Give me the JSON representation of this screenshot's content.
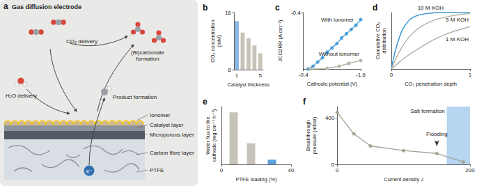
{
  "diagram": {
    "panel": "a",
    "title": "Gas diffusion electrode",
    "processes": {
      "co2_delivery": "CO₂ delivery",
      "carbonate": "(Bi)carbonate\nformation",
      "h2o_delivery": "H₂O delivery",
      "product": "Product formation"
    },
    "layers": {
      "ionomer": "Ionomer",
      "catalyst": "Catalyst layer",
      "microporous": "Microporous layer",
      "carbon_fibre": "Carbon fibre layer",
      "ptfe": "PTFE"
    },
    "electron": "e⁻"
  },
  "chart_data": [
    {
      "title": "b",
      "type": "bar",
      "categories": [
        "1",
        null,
        null,
        null,
        "5"
      ],
      "values": [
        14.8,
        13.2,
        12.4,
        11.4,
        10.3
      ],
      "colors": [
        "#8cb8e2",
        "#c8c3b8",
        "#c8c3b8",
        "#c8c3b8",
        "#c8c3b8"
      ],
      "ylim": [
        8,
        16
      ],
      "yticks": [
        8,
        16
      ],
      "xlabel": "Catalyst thickness",
      "ylabel": "CO₂ concentration\n(mM)"
    },
    {
      "title": "c",
      "type": "line",
      "series": [
        {
          "name": "With ionomer",
          "color": "#4a9fd8",
          "marker": "circle",
          "x": [
            -0.5,
            -0.6,
            -0.7,
            -0.8,
            -0.9,
            -1.0,
            -1.1,
            -1.2,
            -1.3,
            -1.4,
            -1.5,
            -1.6
          ],
          "values": [
            0,
            -0.02,
            -0.05,
            -0.08,
            -0.12,
            -0.15,
            -0.18,
            -0.22,
            -0.25,
            -0.28,
            -0.31,
            -0.35
          ]
        },
        {
          "name": "Without ionomer",
          "color": "#b9b4a8",
          "marker": "circle",
          "x": [
            -0.55,
            -0.9,
            -1.15,
            -1.35,
            -1.6
          ],
          "values": [
            0,
            -0.005,
            -0.02,
            -0.04,
            -0.06
          ]
        }
      ],
      "xlim": [
        -0.4,
        -1.6
      ],
      "xticks": [
        -0.4,
        -1.6
      ],
      "ylim": [
        0,
        -0.4
      ],
      "yticks": [
        -0.4
      ],
      "xlabel": "Cathodic potential (V)",
      "ylabel": "JCO2RR (A cm⁻²)"
    },
    {
      "title": "d",
      "type": "line",
      "x": [
        0,
        0.1,
        0.2,
        0.3,
        0.4,
        0.5,
        0.6,
        0.7,
        0.8,
        0.9,
        1
      ],
      "series": [
        {
          "name": "10 M KOH",
          "color": "#2a8fd6",
          "values": [
            0,
            0.55,
            0.82,
            0.93,
            0.97,
            0.99,
            1,
            1,
            1,
            1,
            1
          ]
        },
        {
          "name": "5 M KOH",
          "color": "#b5b0a5",
          "values": [
            0,
            0.3,
            0.52,
            0.67,
            0.77,
            0.84,
            0.89,
            0.92,
            0.95,
            0.97,
            0.98
          ]
        },
        {
          "name": "1 M KOH",
          "color": "#b5b0a5",
          "values": [
            0,
            0.12,
            0.23,
            0.32,
            0.41,
            0.49,
            0.56,
            0.62,
            0.67,
            0.71,
            0.75
          ]
        }
      ],
      "xlim": [
        0,
        1
      ],
      "xticks": [
        0,
        1
      ],
      "ylim": [
        0,
        1
      ],
      "tick_labels": "x",
      "xlabel": "CO₂ penetration depth",
      "ylabel": "Cumulative CO₂\ndistribution"
    },
    {
      "title": "e",
      "type": "bar",
      "x": [
        7,
        17,
        29
      ],
      "values": [
        27,
        11,
        2.5
      ],
      "colors": [
        "#c8c3b8",
        "#c8c3b8",
        "#5d9fdc"
      ],
      "xlim": [
        0,
        40
      ],
      "xticks": [
        0,
        40
      ],
      "ylim": [
        0,
        30
      ],
      "tick_labels": "x",
      "xlabel": "PTFE loading (%)",
      "ylabel": "Water flux to the\ncathode (mg cm⁻² h⁻¹)"
    },
    {
      "title": "f",
      "type": "line",
      "x": [
        0,
        25,
        50,
        100,
        150,
        190
      ],
      "values": [
        450,
        265,
        160,
        120,
        95,
        22
      ],
      "color": "#a8a296",
      "marker": "circle",
      "xlim": [
        0,
        200
      ],
      "xticks": [
        0,
        200
      ],
      "ylim": [
        0,
        500
      ],
      "yticks": [
        0,
        400
      ],
      "xlabel": "Current density J",
      "ylabel": "Breakthrough\npressure (mbar)",
      "annotations": [
        {
          "text": "Flooding",
          "x": 150,
          "y": 95
        }
      ],
      "regions": [
        {
          "label": "Salt formation",
          "from": 165,
          "to": 200,
          "color": "#b5d5f0"
        }
      ]
    }
  ]
}
